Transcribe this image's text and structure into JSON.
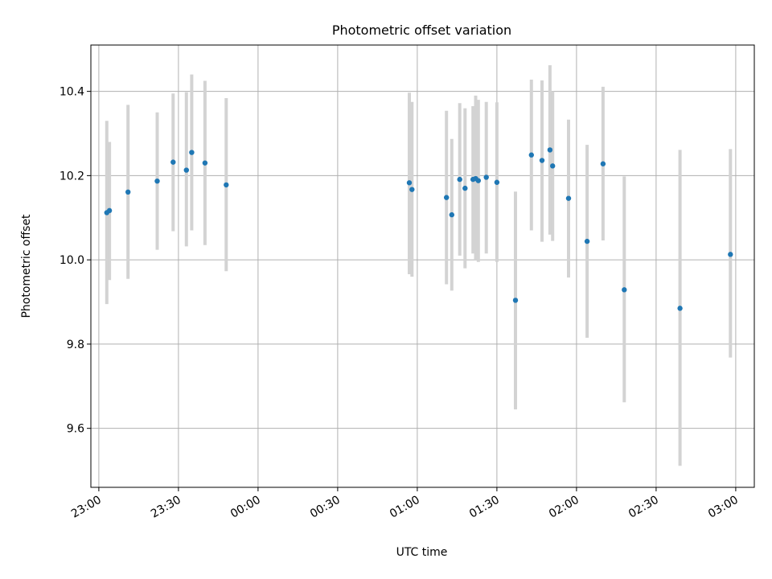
{
  "chart_data": {
    "type": "scatter",
    "title": "Photometric offset variation",
    "xlabel": "UTC time",
    "ylabel": "Photometric offset",
    "grid": true,
    "colors": {
      "points": "#1f77b4",
      "error_bars": "#d3d3d3",
      "grid": "#b0b0b0"
    },
    "xlim": [
      "22:57",
      "03:07"
    ],
    "ylim": [
      9.46,
      10.51
    ],
    "x_ticks": [
      "23:00",
      "23:30",
      "00:00",
      "00:30",
      "01:00",
      "01:30",
      "02:00",
      "02:30",
      "03:00"
    ],
    "y_ticks": [
      "9.6",
      "9.8",
      "10.0",
      "10.2",
      "10.4"
    ],
    "series": [
      {
        "points": [
          {
            "x": "23:03",
            "y": 10.112,
            "ylo": 9.895,
            "yhi": 10.33
          },
          {
            "x": "23:04",
            "y": 10.117,
            "ylo": 9.952,
            "yhi": 10.28
          },
          {
            "x": "23:11",
            "y": 10.161,
            "ylo": 9.955,
            "yhi": 10.368
          },
          {
            "x": "23:22",
            "y": 10.187,
            "ylo": 10.024,
            "yhi": 10.35
          },
          {
            "x": "23:28",
            "y": 10.232,
            "ylo": 10.068,
            "yhi": 10.395
          },
          {
            "x": "23:33",
            "y": 10.213,
            "ylo": 10.032,
            "yhi": 10.398
          },
          {
            "x": "23:35",
            "y": 10.255,
            "ylo": 10.07,
            "yhi": 10.44
          },
          {
            "x": "23:40",
            "y": 10.23,
            "ylo": 10.035,
            "yhi": 10.425
          },
          {
            "x": "23:48",
            "y": 10.178,
            "ylo": 9.973,
            "yhi": 10.384
          },
          {
            "x": "00:57",
            "y": 10.183,
            "ylo": 9.966,
            "yhi": 10.397
          },
          {
            "x": "00:58",
            "y": 10.167,
            "ylo": 9.96,
            "yhi": 10.375
          },
          {
            "x": "01:11",
            "y": 10.148,
            "ylo": 9.942,
            "yhi": 10.354
          },
          {
            "x": "01:13",
            "y": 10.107,
            "ylo": 9.927,
            "yhi": 10.287
          },
          {
            "x": "01:16",
            "y": 10.191,
            "ylo": 10.01,
            "yhi": 10.372
          },
          {
            "x": "01:18",
            "y": 10.17,
            "ylo": 9.98,
            "yhi": 10.36
          },
          {
            "x": "01:21",
            "y": 10.191,
            "ylo": 10.015,
            "yhi": 10.365
          },
          {
            "x": "01:22",
            "y": 10.193,
            "ylo": 10.0,
            "yhi": 10.39
          },
          {
            "x": "01:23",
            "y": 10.188,
            "ylo": 9.995,
            "yhi": 10.38
          },
          {
            "x": "01:26",
            "y": 10.196,
            "ylo": 10.015,
            "yhi": 10.375
          },
          {
            "x": "01:30",
            "y": 10.184,
            "ylo": 9.995,
            "yhi": 10.374
          },
          {
            "x": "01:37",
            "y": 9.904,
            "ylo": 9.645,
            "yhi": 10.162
          },
          {
            "x": "01:43",
            "y": 10.249,
            "ylo": 10.07,
            "yhi": 10.428
          },
          {
            "x": "01:47",
            "y": 10.236,
            "ylo": 10.043,
            "yhi": 10.426
          },
          {
            "x": "01:50",
            "y": 10.261,
            "ylo": 10.06,
            "yhi": 10.462
          },
          {
            "x": "01:51",
            "y": 10.223,
            "ylo": 10.045,
            "yhi": 10.4
          },
          {
            "x": "01:57",
            "y": 10.146,
            "ylo": 9.958,
            "yhi": 10.333
          },
          {
            "x": "02:04",
            "y": 10.044,
            "ylo": 9.815,
            "yhi": 10.273
          },
          {
            "x": "02:10",
            "y": 10.228,
            "ylo": 10.046,
            "yhi": 10.411
          },
          {
            "x": "02:18",
            "y": 9.929,
            "ylo": 9.662,
            "yhi": 10.198
          },
          {
            "x": "02:39",
            "y": 9.885,
            "ylo": 9.511,
            "yhi": 10.261
          },
          {
            "x": "02:58",
            "y": 10.013,
            "ylo": 9.768,
            "yhi": 10.263
          }
        ]
      }
    ]
  }
}
